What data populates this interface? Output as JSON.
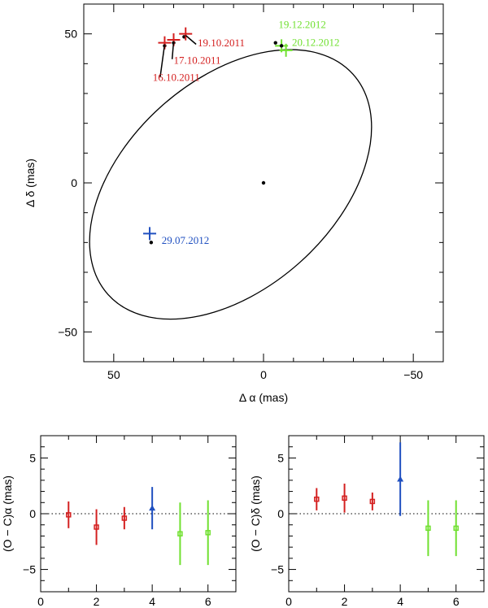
{
  "chart_data": [
    {
      "type": "scatter",
      "title": "",
      "xlabel": "Δ α (mas)",
      "ylabel": "Δ δ (mas)",
      "xlim": [
        60,
        -60
      ],
      "ylim": [
        -60,
        60
      ],
      "xticks": [
        50,
        0,
        -50
      ],
      "yticks": [
        50,
        0,
        -50
      ],
      "xtick_labels": [
        "50",
        "0",
        "−50"
      ],
      "ytick_labels": [
        "50",
        "0",
        "−50"
      ],
      "center_star": {
        "x": 0,
        "y": 0
      },
      "orbit": {
        "cx": 11,
        "cy": -0.5,
        "a": 55,
        "b": 35,
        "angle_deg": -42
      },
      "epochs": [
        {
          "label": "16.10.2011",
          "color": "#d42020",
          "x": 33,
          "y": 47,
          "model_x": 33,
          "model_y": 46,
          "label_x": 37,
          "label_y": 34.2,
          "line_from": [
            34.5,
            35.5
          ],
          "line_to": [
            33,
            46.5
          ]
        },
        {
          "label": "17.10.2011",
          "color": "#d42020",
          "x": 30,
          "y": 48,
          "model_x": 30,
          "model_y": 47,
          "label_x": 30,
          "label_y": 40,
          "line_from": [
            30.5,
            41.5
          ],
          "line_to": [
            30,
            47.5
          ]
        },
        {
          "label": "19.10.2011",
          "color": "#d42020",
          "x": 26,
          "y": 50,
          "model_x": 26.5,
          "model_y": 49,
          "label_x": 22,
          "label_y": 45.8,
          "line_from": [
            22.5,
            46.5
          ],
          "line_to": [
            26,
            49.5
          ]
        },
        {
          "label": "29.07.2012",
          "color": "#2050c0",
          "x": 38,
          "y": -17,
          "model_x": 37.5,
          "model_y": -20,
          "label_x": 34,
          "label_y": -20.5,
          "line_from": null,
          "line_to": null
        },
        {
          "label": "19.12.2012",
          "color": "#70e030",
          "x": -6,
          "y": 46,
          "model_x": -4,
          "model_y": 47,
          "label_x": -5,
          "label_y": 52,
          "line_from": null,
          "line_to": null
        },
        {
          "label": "20.12.2012",
          "color": "#70e030",
          "x": -7.5,
          "y": 44.5,
          "model_x": -6,
          "model_y": 46,
          "label_x": -9.5,
          "label_y": 46,
          "line_from": null,
          "line_to": null
        }
      ]
    },
    {
      "type": "scatter",
      "xlabel": "",
      "ylabel": "(O − C)α (mas)",
      "xlim": [
        0,
        7
      ],
      "ylim": [
        -7,
        7
      ],
      "xticks": [
        0,
        2,
        4,
        6
      ],
      "yticks": [
        5,
        0,
        -5
      ],
      "xtick_labels": [
        "0",
        "2",
        "4",
        "6"
      ],
      "ytick_labels": [
        "5",
        "0",
        "−5"
      ],
      "zero_line": true,
      "points": [
        {
          "x": 1,
          "y": -0.1,
          "err": 1.2,
          "color": "#d42020",
          "marker": "square"
        },
        {
          "x": 2,
          "y": -1.2,
          "err": 1.6,
          "color": "#d42020",
          "marker": "square"
        },
        {
          "x": 3,
          "y": -0.4,
          "err": 1.0,
          "color": "#d42020",
          "marker": "square"
        },
        {
          "x": 4,
          "y": 0.5,
          "err": 1.9,
          "color": "#2050c0",
          "marker": "triangle"
        },
        {
          "x": 5,
          "y": -1.8,
          "err": 2.8,
          "color": "#70e030",
          "marker": "square"
        },
        {
          "x": 6,
          "y": -1.7,
          "err": 2.9,
          "color": "#70e030",
          "marker": "square"
        }
      ]
    },
    {
      "type": "scatter",
      "xlabel": "",
      "ylabel": "(O − C)δ (mas)",
      "xlim": [
        0,
        7
      ],
      "ylim": [
        -7,
        7
      ],
      "xticks": [
        0,
        2,
        4,
        6
      ],
      "yticks": [
        5,
        0,
        -5
      ],
      "xtick_labels": [
        "0",
        "2",
        "4",
        "6"
      ],
      "ytick_labels": [
        "5",
        "0",
        "−5"
      ],
      "zero_line": true,
      "points": [
        {
          "x": 1,
          "y": 1.3,
          "err": 1.0,
          "color": "#d42020",
          "marker": "square"
        },
        {
          "x": 2,
          "y": 1.4,
          "err": 1.3,
          "color": "#d42020",
          "marker": "square"
        },
        {
          "x": 3,
          "y": 1.1,
          "err": 0.8,
          "color": "#d42020",
          "marker": "square"
        },
        {
          "x": 4,
          "y": 3.1,
          "err": 3.3,
          "color": "#2050c0",
          "marker": "triangle"
        },
        {
          "x": 5,
          "y": -1.3,
          "err": 2.5,
          "color": "#70e030",
          "marker": "square"
        },
        {
          "x": 6,
          "y": -1.3,
          "err": 2.5,
          "color": "#70e030",
          "marker": "square"
        }
      ]
    }
  ]
}
